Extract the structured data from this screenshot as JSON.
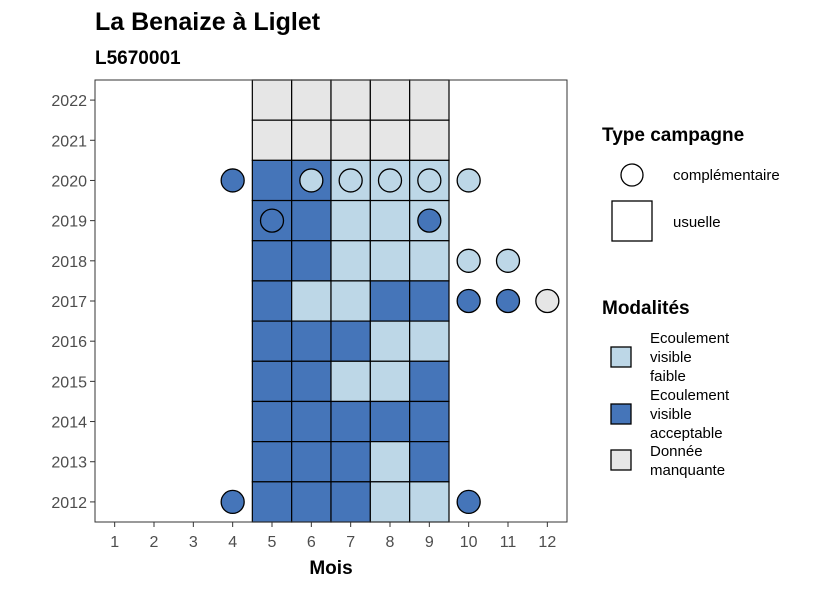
{
  "chart_data": {
    "type": "heatmap",
    "title": "La Benaize à Liglet",
    "subtitle": "L5670001",
    "xlabel": "Mois",
    "ylabel": "",
    "x_ticks": [
      "1",
      "2",
      "3",
      "4",
      "5",
      "6",
      "7",
      "8",
      "9",
      "10",
      "11",
      "12"
    ],
    "y_ticks": [
      "2012",
      "2013",
      "2014",
      "2015",
      "2016",
      "2017",
      "2018",
      "2019",
      "2020",
      "2021",
      "2022"
    ],
    "xlim": [
      0.5,
      12.5
    ],
    "ylim": [
      2011.5,
      2022.5
    ],
    "grid": false,
    "legend_position": "right",
    "colors": {
      "faible": "#BDD7E7",
      "acceptable": "#4575B9",
      "manquante": "#E6E6E6"
    },
    "legend_shape": {
      "title": "Type campagne",
      "items": [
        {
          "label": "complémentaire",
          "shape": "circle"
        },
        {
          "label": "usuelle",
          "shape": "square"
        }
      ]
    },
    "legend_fill": {
      "title": "Modalités",
      "items": [
        {
          "label": "Ecoulement visible faible",
          "lines": [
            "Ecoulement",
            "visible",
            "faible"
          ],
          "key": "faible"
        },
        {
          "label": "Ecoulement visible acceptable",
          "lines": [
            "Ecoulement",
            "visible",
            "acceptable"
          ],
          "key": "acceptable"
        },
        {
          "label": "Donnée manquante",
          "lines": [
            "Donnée",
            "manquante"
          ],
          "key": "manquante"
        }
      ]
    },
    "usuelle": [
      {
        "year": 2022,
        "month": 5,
        "value": "manquante"
      },
      {
        "year": 2022,
        "month": 6,
        "value": "manquante"
      },
      {
        "year": 2022,
        "month": 7,
        "value": "manquante"
      },
      {
        "year": 2022,
        "month": 8,
        "value": "manquante"
      },
      {
        "year": 2022,
        "month": 9,
        "value": "manquante"
      },
      {
        "year": 2021,
        "month": 5,
        "value": "manquante"
      },
      {
        "year": 2021,
        "month": 6,
        "value": "manquante"
      },
      {
        "year": 2021,
        "month": 7,
        "value": "manquante"
      },
      {
        "year": 2021,
        "month": 8,
        "value": "manquante"
      },
      {
        "year": 2021,
        "month": 9,
        "value": "manquante"
      },
      {
        "year": 2020,
        "month": 5,
        "value": "acceptable"
      },
      {
        "year": 2020,
        "month": 6,
        "value": "acceptable"
      },
      {
        "year": 2020,
        "month": 7,
        "value": "faible"
      },
      {
        "year": 2020,
        "month": 8,
        "value": "faible"
      },
      {
        "year": 2020,
        "month": 9,
        "value": "faible"
      },
      {
        "year": 2019,
        "month": 5,
        "value": "acceptable"
      },
      {
        "year": 2019,
        "month": 6,
        "value": "acceptable"
      },
      {
        "year": 2019,
        "month": 7,
        "value": "faible"
      },
      {
        "year": 2019,
        "month": 8,
        "value": "faible"
      },
      {
        "year": 2019,
        "month": 9,
        "value": "faible"
      },
      {
        "year": 2018,
        "month": 5,
        "value": "acceptable"
      },
      {
        "year": 2018,
        "month": 6,
        "value": "acceptable"
      },
      {
        "year": 2018,
        "month": 7,
        "value": "faible"
      },
      {
        "year": 2018,
        "month": 8,
        "value": "faible"
      },
      {
        "year": 2018,
        "month": 9,
        "value": "faible"
      },
      {
        "year": 2017,
        "month": 5,
        "value": "acceptable"
      },
      {
        "year": 2017,
        "month": 6,
        "value": "faible"
      },
      {
        "year": 2017,
        "month": 7,
        "value": "faible"
      },
      {
        "year": 2017,
        "month": 8,
        "value": "acceptable"
      },
      {
        "year": 2017,
        "month": 9,
        "value": "acceptable"
      },
      {
        "year": 2016,
        "month": 5,
        "value": "acceptable"
      },
      {
        "year": 2016,
        "month": 6,
        "value": "acceptable"
      },
      {
        "year": 2016,
        "month": 7,
        "value": "acceptable"
      },
      {
        "year": 2016,
        "month": 8,
        "value": "faible"
      },
      {
        "year": 2016,
        "month": 9,
        "value": "faible"
      },
      {
        "year": 2015,
        "month": 5,
        "value": "acceptable"
      },
      {
        "year": 2015,
        "month": 6,
        "value": "acceptable"
      },
      {
        "year": 2015,
        "month": 7,
        "value": "faible"
      },
      {
        "year": 2015,
        "month": 8,
        "value": "faible"
      },
      {
        "year": 2015,
        "month": 9,
        "value": "acceptable"
      },
      {
        "year": 2014,
        "month": 5,
        "value": "acceptable"
      },
      {
        "year": 2014,
        "month": 6,
        "value": "acceptable"
      },
      {
        "year": 2014,
        "month": 7,
        "value": "acceptable"
      },
      {
        "year": 2014,
        "month": 8,
        "value": "acceptable"
      },
      {
        "year": 2014,
        "month": 9,
        "value": "acceptable"
      },
      {
        "year": 2013,
        "month": 5,
        "value": "acceptable"
      },
      {
        "year": 2013,
        "month": 6,
        "value": "acceptable"
      },
      {
        "year": 2013,
        "month": 7,
        "value": "acceptable"
      },
      {
        "year": 2013,
        "month": 8,
        "value": "faible"
      },
      {
        "year": 2013,
        "month": 9,
        "value": "acceptable"
      },
      {
        "year": 2012,
        "month": 5,
        "value": "acceptable"
      },
      {
        "year": 2012,
        "month": 6,
        "value": "acceptable"
      },
      {
        "year": 2012,
        "month": 7,
        "value": "acceptable"
      },
      {
        "year": 2012,
        "month": 8,
        "value": "faible"
      },
      {
        "year": 2012,
        "month": 9,
        "value": "faible"
      }
    ],
    "complementaire": [
      {
        "year": 2020,
        "month": 4,
        "value": "acceptable"
      },
      {
        "year": 2020,
        "month": 6,
        "value": "faible"
      },
      {
        "year": 2020,
        "month": 7,
        "value": "faible"
      },
      {
        "year": 2020,
        "month": 8,
        "value": "faible"
      },
      {
        "year": 2020,
        "month": 9,
        "value": "faible"
      },
      {
        "year": 2020,
        "month": 10,
        "value": "faible"
      },
      {
        "year": 2019,
        "month": 5,
        "value": "acceptable"
      },
      {
        "year": 2019,
        "month": 9,
        "value": "acceptable"
      },
      {
        "year": 2018,
        "month": 10,
        "value": "faible"
      },
      {
        "year": 2018,
        "month": 11,
        "value": "faible"
      },
      {
        "year": 2017,
        "month": 10,
        "value": "acceptable"
      },
      {
        "year": 2017,
        "month": 11,
        "value": "acceptable"
      },
      {
        "year": 2017,
        "month": 12,
        "value": "manquante"
      },
      {
        "year": 2012,
        "month": 4,
        "value": "acceptable"
      },
      {
        "year": 2012,
        "month": 10,
        "value": "acceptable"
      }
    ]
  }
}
